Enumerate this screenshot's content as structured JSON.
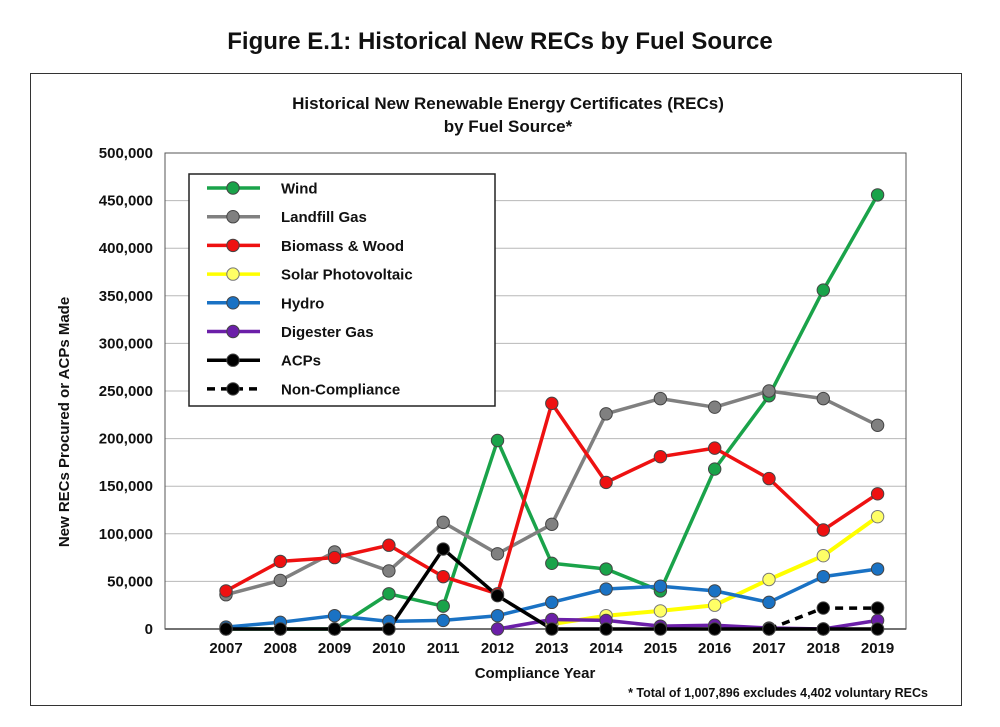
{
  "figure_title": "Figure E.1: Historical New RECs by Fuel Source",
  "chart_data": {
    "type": "line",
    "title": "Historical New Renewable Energy Certificates (RECs)",
    "subtitle": "by Fuel Source*",
    "xlabel": "Compliance Year",
    "ylabel": "New RECs Procured or ACPs Made",
    "ylim": [
      0,
      500000
    ],
    "yticks": [
      "0",
      "50,000",
      "100,000",
      "150,000",
      "200,000",
      "250,000",
      "300,000",
      "350,000",
      "400,000",
      "450,000",
      "500,000"
    ],
    "ytick_values": [
      0,
      50000,
      100000,
      150000,
      200000,
      250000,
      300000,
      350000,
      400000,
      450000,
      500000
    ],
    "categories": [
      "2007",
      "2008",
      "2009",
      "2010",
      "2011",
      "2012",
      "2013",
      "2014",
      "2015",
      "2016",
      "2017",
      "2018",
      "2019"
    ],
    "grid": "horizontal",
    "legend_position": "top-left",
    "footnote": "* Total of 1,007,896 excludes 4,402 voluntary RECs",
    "series": [
      {
        "name": "Wind",
        "color": "#1aa34a",
        "dashed": false,
        "values": [
          0,
          0,
          0,
          37000,
          24000,
          198000,
          69000,
          63000,
          40000,
          168000,
          245000,
          356000,
          456000
        ],
        "start": 0
      },
      {
        "name": "Landfill Gas",
        "color": "#808080",
        "dashed": false,
        "values": [
          36000,
          51000,
          81000,
          61000,
          112000,
          79000,
          110000,
          226000,
          242000,
          233000,
          250000,
          242000,
          214000
        ],
        "start": 0
      },
      {
        "name": "Biomass & Wood",
        "color": "#ee1111",
        "dashed": false,
        "values": [
          40000,
          71000,
          75000,
          88000,
          55000,
          37000,
          237000,
          154000,
          181000,
          190000,
          158000,
          104000,
          142000
        ],
        "start": 0
      },
      {
        "name": "Solar Photovoltaic",
        "color": "#ffff00",
        "dashed": false,
        "values": [
          0,
          0,
          0,
          0,
          0,
          0,
          5000,
          14000,
          19000,
          25000,
          52000,
          77000,
          118000
        ],
        "start": 6
      },
      {
        "name": "Hydro",
        "color": "#1a72c4",
        "dashed": false,
        "values": [
          2000,
          7000,
          14000,
          8000,
          9000,
          14000,
          28000,
          42000,
          45000,
          40000,
          28000,
          55000,
          63000
        ],
        "start": 0
      },
      {
        "name": "Digester Gas",
        "color": "#6b1fa8",
        "dashed": false,
        "values": [
          0,
          0,
          0,
          0,
          0,
          0,
          10000,
          9000,
          3000,
          4000,
          1000,
          0,
          9000
        ],
        "start": 5
      },
      {
        "name": "ACPs",
        "color": "#000000",
        "dashed": false,
        "values": [
          0,
          0,
          0,
          0,
          84000,
          35000,
          0,
          0,
          0,
          0,
          0,
          0,
          0
        ],
        "start": 0
      },
      {
        "name": "Non-Compliance",
        "color": "#000000",
        "dashed": true,
        "values": [
          0,
          0,
          0,
          0,
          0,
          0,
          0,
          0,
          0,
          0,
          0,
          22000,
          22000
        ],
        "start": 10
      }
    ]
  }
}
